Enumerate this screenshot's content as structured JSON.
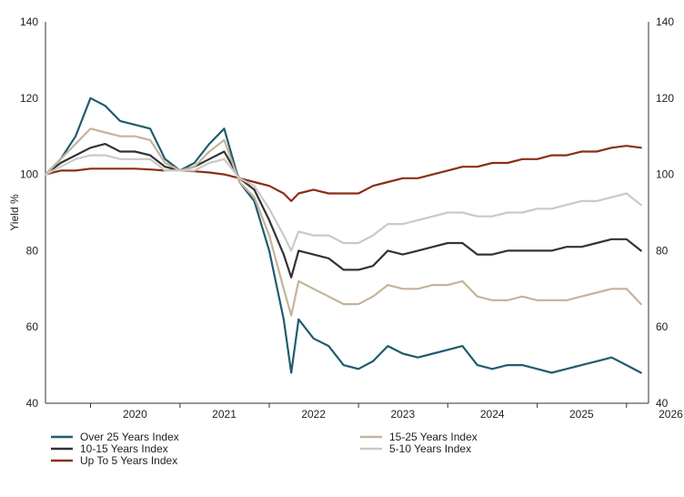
{
  "chart_data": {
    "type": "line",
    "title": "",
    "xlabel": "",
    "ylabel": "Yield %",
    "ylim": [
      40,
      140
    ],
    "yticks": [
      "40",
      "60",
      "80",
      "100",
      "120",
      "140"
    ],
    "xticks": [
      "2020",
      "2021",
      "2022",
      "2023",
      "2024",
      "2025",
      "2026"
    ],
    "x": [
      "2019-07",
      "2019-09",
      "2019-11",
      "2020-01",
      "2020-03",
      "2020-05",
      "2020-07",
      "2020-09",
      "2020-11",
      "2021-01",
      "2021-03",
      "2021-05",
      "2021-07",
      "2021-09",
      "2021-11",
      "2022-01",
      "2022-03",
      "2022-04",
      "2022-05",
      "2022-07",
      "2022-09",
      "2022-11",
      "2023-01",
      "2023-03",
      "2023-05",
      "2023-07",
      "2023-09",
      "2023-11",
      "2024-01",
      "2024-03",
      "2024-05",
      "2024-07",
      "2024-09",
      "2024-11",
      "2025-01",
      "2025-03",
      "2025-05",
      "2025-07",
      "2025-09",
      "2025-11",
      "2026-01",
      "2026-03"
    ],
    "series": [
      {
        "name": "Over 25 Years Index",
        "color": "#1f5c6e",
        "values": [
          100,
          104,
          110,
          120,
          118,
          114,
          113,
          112,
          104,
          101,
          103,
          108,
          112,
          98,
          93,
          80,
          62,
          48,
          62,
          57,
          55,
          50,
          49,
          51,
          55,
          53,
          52,
          53,
          54,
          55,
          50,
          49,
          50,
          50,
          49,
          48,
          49,
          50,
          51,
          52,
          50,
          48
        ]
      },
      {
        "name": "10-15 Years Index",
        "color": "#333333",
        "values": [
          100,
          103,
          105,
          107,
          108,
          106,
          106,
          105,
          102,
          101,
          102,
          104,
          106,
          99,
          96,
          88,
          79,
          73,
          80,
          79,
          78,
          75,
          75,
          76,
          80,
          79,
          80,
          81,
          82,
          82,
          79,
          79,
          80,
          80,
          80,
          80,
          81,
          81,
          82,
          83,
          83,
          80
        ]
      },
      {
        "name": "Up To 5 Years Index",
        "color": "#8b2e16",
        "values": [
          100,
          101,
          101,
          101.5,
          101.5,
          101.5,
          101.5,
          101.3,
          101,
          101,
          100.8,
          100.5,
          100,
          99,
          98,
          97,
          95,
          93,
          95,
          96,
          95,
          95,
          95,
          97,
          98,
          99,
          99,
          100,
          101,
          102,
          102,
          103,
          103,
          104,
          104,
          105,
          105,
          106,
          106,
          107,
          107.5,
          107
        ]
      },
      {
        "name": "15-25 Years Index",
        "color": "#c4b49a",
        "values": [
          100,
          104,
          108,
          112,
          111,
          110,
          110,
          109,
          103,
          101,
          102,
          106,
          109,
          98,
          94,
          84,
          70,
          63,
          72,
          70,
          68,
          66,
          66,
          68,
          71,
          70,
          70,
          71,
          71,
          72,
          68,
          67,
          67,
          68,
          67,
          67,
          67,
          68,
          69,
          70,
          70,
          66
        ]
      },
      {
        "name": "5-10 Years Index",
        "color": "#c9c9c9",
        "values": [
          100,
          102,
          104,
          105,
          105,
          104,
          104,
          104,
          101,
          101,
          101,
          103,
          104,
          99,
          97,
          91,
          84,
          80,
          85,
          84,
          84,
          82,
          82,
          84,
          87,
          87,
          88,
          89,
          90,
          90,
          89,
          89,
          90,
          90,
          91,
          91,
          92,
          93,
          93,
          94,
          95,
          92
        ]
      }
    ],
    "legend": {
      "position": "bottom",
      "columns": [
        [
          "Over 25 Years Index",
          "10-15 Years Index",
          "Up To 5 Years Index"
        ],
        [
          "15-25 Years Index",
          "5-10 Years Index"
        ]
      ]
    },
    "grid": false
  }
}
